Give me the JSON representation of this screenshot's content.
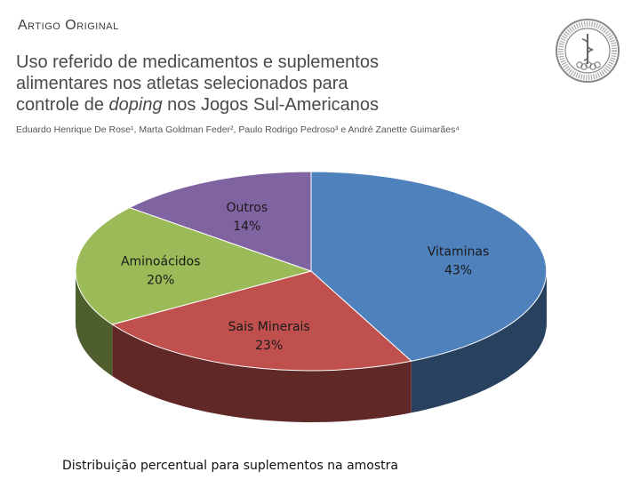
{
  "header": {
    "section": "Artigo Original",
    "title_line1": "Uso referido de medicamentos e suplementos",
    "title_line2": "alimentares nos atletas selecionados para",
    "title_line3_pre": "controle de ",
    "title_line3_em": "doping",
    "title_line3_post": " nos Jogos Sul-Americanos",
    "authors": "Eduardo Henrique De Rose¹, Marta Goldman Feder², Paulo Rodrigo Pedroso³ e André Zanette Guimarães⁴"
  },
  "caption": "Distribuição percentual para suplementos na amostra",
  "colors": {
    "vitaminas": "#4f81bd",
    "sais_minerais": "#c0504d",
    "aminoacidos": "#9bbb59",
    "outros": "#8064a2"
  },
  "chart_data": {
    "type": "pie",
    "title": "",
    "labels": [
      "Vitaminas",
      "Sais Minerais",
      "Aminoácidos",
      "Outros"
    ],
    "values": [
      43,
      23,
      20,
      14
    ],
    "value_labels": [
      "43%",
      "23%",
      "20%",
      "14%"
    ],
    "style": "3d"
  }
}
